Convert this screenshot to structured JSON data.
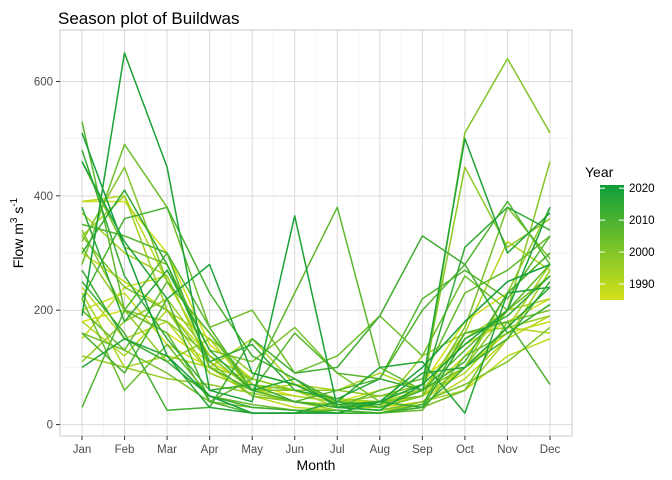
{
  "chart_data": {
    "type": "line",
    "title": "Season plot of Buildwas",
    "xlabel": "Month",
    "ylabel": "Flow m³ s⁻¹",
    "ylabel_parts": {
      "base": "Flow m",
      "sup1": "3",
      "mid": " s",
      "sup2": "-1"
    },
    "categories": [
      "Jan",
      "Feb",
      "Mar",
      "Apr",
      "May",
      "Jun",
      "Jul",
      "Aug",
      "Sep",
      "Oct",
      "Nov",
      "Dec"
    ],
    "ylim": [
      -20,
      690
    ],
    "yticks": [
      0,
      200,
      400,
      600
    ],
    "grid": true,
    "legend": {
      "title": "Year",
      "position": "right",
      "range": [
        1985,
        2021
      ],
      "ticks": [
        1990,
        2000,
        2010,
        2020
      ],
      "color_low": "#d4e21b",
      "color_high": "#0f9d3a"
    },
    "series": [
      {
        "year": 1985,
        "values": [
          180,
          200,
          160,
          110,
          70,
          50,
          40,
          60,
          80,
          140,
          180,
          220
        ]
      },
      {
        "year": 1986,
        "values": [
          390,
          390,
          300,
          140,
          80,
          60,
          40,
          40,
          70,
          180,
          230,
          300
        ]
      },
      {
        "year": 1987,
        "values": [
          200,
          230,
          140,
          100,
          60,
          40,
          30,
          30,
          40,
          100,
          160,
          180
        ]
      },
      {
        "year": 1988,
        "values": [
          300,
          250,
          200,
          120,
          60,
          40,
          30,
          35,
          50,
          120,
          200,
          260
        ]
      },
      {
        "year": 1989,
        "values": [
          150,
          240,
          260,
          100,
          50,
          30,
          25,
          20,
          30,
          60,
          120,
          150
        ]
      },
      {
        "year": 1990,
        "values": [
          390,
          400,
          250,
          120,
          60,
          40,
          30,
          25,
          35,
          80,
          150,
          190
        ]
      },
      {
        "year": 1991,
        "values": [
          240,
          150,
          180,
          90,
          60,
          50,
          40,
          30,
          50,
          90,
          170,
          160
        ]
      },
      {
        "year": 1992,
        "values": [
          180,
          120,
          200,
          150,
          60,
          70,
          60,
          90,
          60,
          160,
          320,
          270
        ]
      },
      {
        "year": 1993,
        "values": [
          230,
          100,
          120,
          100,
          150,
          70,
          45,
          40,
          60,
          150,
          200,
          220
        ]
      },
      {
        "year": 1994,
        "values": [
          370,
          300,
          260,
          100,
          80,
          60,
          30,
          30,
          50,
          100,
          170,
          280
        ]
      },
      {
        "year": 1995,
        "values": [
          330,
          400,
          200,
          90,
          60,
          40,
          25,
          20,
          40,
          60,
          150,
          270
        ]
      },
      {
        "year": 1996,
        "values": [
          120,
          100,
          80,
          70,
          55,
          40,
          35,
          30,
          120,
          160,
          170,
          190
        ]
      },
      {
        "year": 1997,
        "values": [
          110,
          180,
          220,
          120,
          80,
          60,
          60,
          50,
          60,
          100,
          230,
          380
        ]
      },
      {
        "year": 1998,
        "values": [
          310,
          200,
          110,
          150,
          90,
          70,
          40,
          50,
          70,
          450,
          310,
          360
        ]
      },
      {
        "year": 1999,
        "values": [
          340,
          200,
          180,
          120,
          60,
          60,
          40,
          35,
          60,
          100,
          200,
          460
        ]
      },
      {
        "year": 2000,
        "values": [
          320,
          450,
          250,
          160,
          70,
          60,
          40,
          30,
          50,
          510,
          640,
          510
        ]
      },
      {
        "year": 2001,
        "values": [
          330,
          240,
          200,
          110,
          50,
          40,
          30,
          25,
          40,
          70,
          110,
          170
        ]
      },
      {
        "year": 2002,
        "values": [
          460,
          310,
          280,
          130,
          110,
          170,
          90,
          40,
          50,
          170,
          380,
          290
        ]
      },
      {
        "year": 2003,
        "values": [
          160,
          130,
          90,
          40,
          30,
          25,
          25,
          20,
          30,
          60,
          180,
          200
        ]
      },
      {
        "year": 2004,
        "values": [
          280,
          490,
          380,
          170,
          200,
          90,
          120,
          190,
          120,
          260,
          200,
          260
        ]
      },
      {
        "year": 2005,
        "values": [
          220,
          60,
          140,
          50,
          35,
          25,
          20,
          20,
          25,
          120,
          160,
          210
        ]
      },
      {
        "year": 2006,
        "values": [
          200,
          130,
          250,
          160,
          60,
          40,
          30,
          60,
          80,
          230,
          270,
          330
        ]
      },
      {
        "year": 2007,
        "values": [
          530,
          200,
          160,
          40,
          80,
          230,
          380,
          100,
          60,
          130,
          200,
          280
        ]
      },
      {
        "year": 2008,
        "values": [
          350,
          330,
          300,
          170,
          60,
          160,
          90,
          80,
          220,
          270,
          220,
          330
        ]
      },
      {
        "year": 2009,
        "values": [
          30,
          200,
          300,
          100,
          60,
          40,
          60,
          80,
          200,
          280,
          390,
          280
        ]
      },
      {
        "year": 2010,
        "values": [
          160,
          90,
          220,
          40,
          20,
          20,
          25,
          20,
          35,
          160,
          180,
          70
        ]
      },
      {
        "year": 2011,
        "values": [
          220,
          360,
          380,
          230,
          120,
          80,
          40,
          30,
          60,
          110,
          230,
          300
        ]
      },
      {
        "year": 2012,
        "values": [
          250,
          160,
          25,
          30,
          150,
          90,
          100,
          190,
          330,
          280,
          160,
          210
        ]
      },
      {
        "year": 2013,
        "values": [
          270,
          150,
          110,
          50,
          30,
          25,
          20,
          20,
          30,
          100,
          150,
          250
        ]
      },
      {
        "year": 2014,
        "values": [
          480,
          260,
          150,
          60,
          70,
          40,
          30,
          40,
          30,
          150,
          190,
          260
        ]
      },
      {
        "year": 2015,
        "values": [
          300,
          410,
          280,
          110,
          140,
          60,
          45,
          80,
          60,
          310,
          380,
          340
        ]
      },
      {
        "year": 2016,
        "values": [
          380,
          180,
          270,
          130,
          60,
          80,
          30,
          35,
          90,
          100,
          170,
          240
        ]
      },
      {
        "year": 2017,
        "values": [
          100,
          150,
          120,
          30,
          20,
          20,
          40,
          100,
          110,
          20,
          230,
          240
        ]
      },
      {
        "year": 2018,
        "values": [
          460,
          320,
          220,
          280,
          90,
          70,
          35,
          40,
          70,
          500,
          300,
          370
        ]
      },
      {
        "year": 2019,
        "values": [
          190,
          650,
          450,
          60,
          40,
          365,
          30,
          25,
          70,
          140,
          200,
          380
        ]
      },
      {
        "year": 2020,
        "values": [
          510,
          310,
          120,
          50,
          20,
          20,
          20,
          40,
          100,
          180,
          250,
          280
        ]
      }
    ]
  }
}
